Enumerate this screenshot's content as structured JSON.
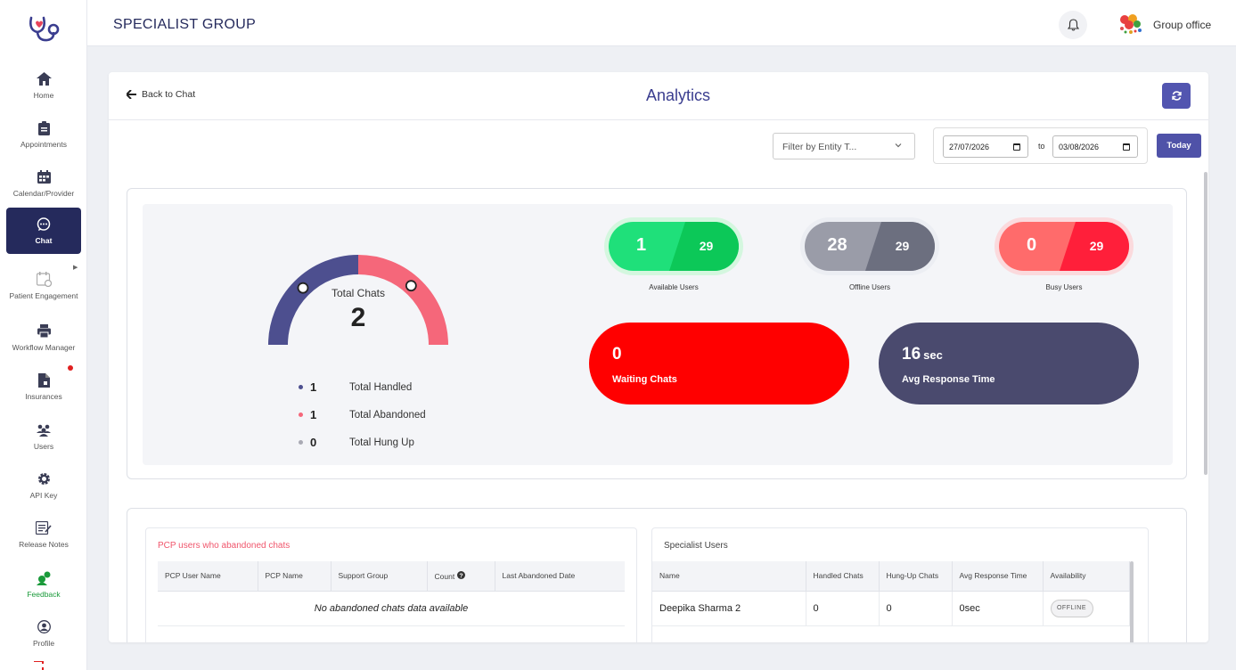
{
  "app": {
    "brand": "SPECIALIST GROUP",
    "org_name": "Group office"
  },
  "sidebar": {
    "items": [
      {
        "label": "Home",
        "icon": "home-icon"
      },
      {
        "label": "Appointments",
        "icon": "clipboard-icon"
      },
      {
        "label": "Calendar/Provider",
        "icon": "calendar-icon"
      },
      {
        "label": "Chat",
        "icon": "chat-icon",
        "active": true
      },
      {
        "label": "Patient Engagement",
        "icon": "engagement-icon"
      },
      {
        "label": "Workflow Manager",
        "icon": "printer-icon"
      },
      {
        "label": "Insurances",
        "icon": "document-icon"
      },
      {
        "label": "Users",
        "icon": "users-icon"
      },
      {
        "label": "API Key",
        "icon": "gear-icon"
      },
      {
        "label": "Release Notes",
        "icon": "notes-icon"
      },
      {
        "label": "Feedback",
        "icon": "feedback-icon"
      },
      {
        "label": "Profile",
        "icon": "profile-icon"
      }
    ]
  },
  "page": {
    "back_label": "Back to Chat",
    "title": "Analytics",
    "filter_placeholder": "Filter by Entity T...",
    "date_from": "27/07/2026",
    "date_to": "03/08/2026",
    "to_label": "to",
    "today_label": "Today"
  },
  "gauge": {
    "label": "Total Chats",
    "value": "2",
    "handled": 1,
    "abandoned": 1,
    "hung_up": 0,
    "colors": {
      "handled": "#4d4f8f",
      "abandoned": "#f5677a",
      "hung_up": "#a9aab4"
    },
    "legend": [
      {
        "num": "1",
        "text": "Total Handled"
      },
      {
        "num": "1",
        "text": "Total Abandoned"
      },
      {
        "num": "0",
        "text": "Total Hung Up"
      }
    ]
  },
  "users": {
    "available": {
      "count": "1",
      "total": "29",
      "label": "Available Users"
    },
    "offline": {
      "count": "28",
      "total": "29",
      "label": "Offline Users"
    },
    "busy": {
      "count": "0",
      "total": "29",
      "label": "Busy Users"
    }
  },
  "waiting": {
    "value": "0",
    "label": "Waiting Chats"
  },
  "response": {
    "value": "16",
    "unit": "sec",
    "label": "Avg Response Time"
  },
  "pcp_table": {
    "title": "PCP users who abandoned chats",
    "columns": [
      "PCP User Name",
      "PCP Name",
      "Support Group",
      "Count",
      "Last Abandoned Date"
    ],
    "empty_text": "No abandoned chats data available"
  },
  "specialist_table": {
    "title": "Specialist Users",
    "columns": [
      "Name",
      "Handled Chats",
      "Hung-Up Chats",
      "Avg Response Time",
      "Availability"
    ],
    "rows": [
      {
        "name": "Deepika Sharma 2",
        "handled": "0",
        "hung": "0",
        "avg": "0sec",
        "availability": "OFFLINE"
      }
    ]
  }
}
